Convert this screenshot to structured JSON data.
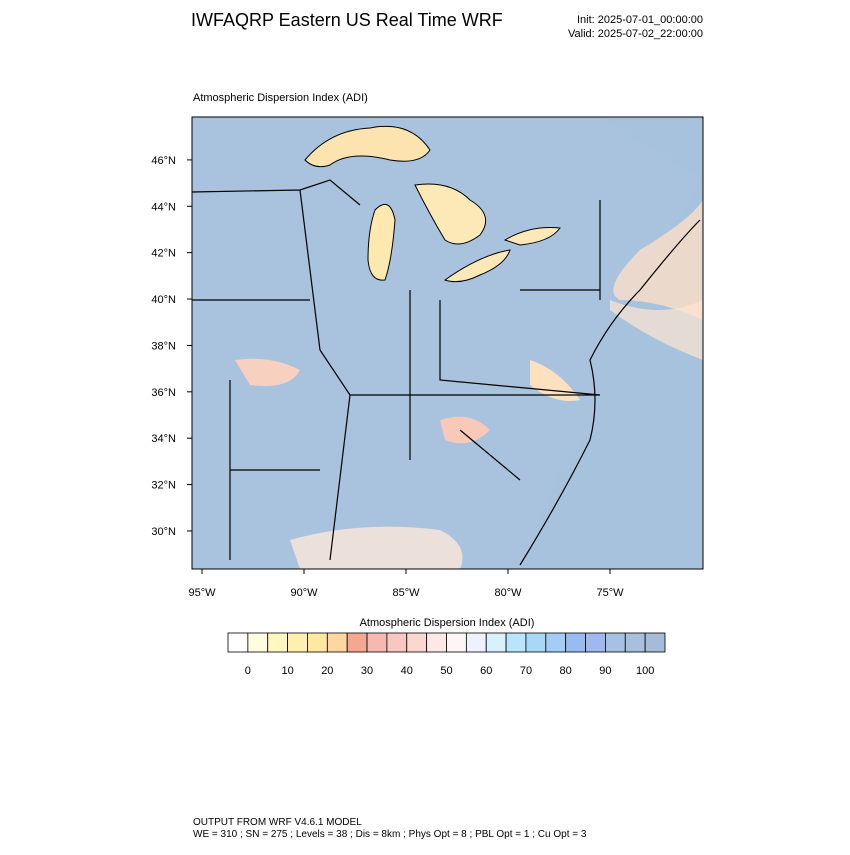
{
  "header": {
    "title": "IWFAQRP Eastern US Real Time WRF",
    "init": "Init: 2025-07-01_00:00:00",
    "valid": "Valid: 2025-07-02_22:00:00"
  },
  "map": {
    "title": "Atmospheric Dispersion Index   (ADI)",
    "xlim": [
      -95.49,
      -70.44
    ],
    "ylim": [
      28.36,
      47.85
    ],
    "xticks": [
      {
        "value": -95,
        "label": "95°W"
      },
      {
        "value": -90,
        "label": "90°W"
      },
      {
        "value": -85,
        "label": "85°W"
      },
      {
        "value": -80,
        "label": "80°W"
      },
      {
        "value": -75,
        "label": "75°W"
      }
    ],
    "yticks": [
      {
        "value": 30,
        "label": "30°N"
      },
      {
        "value": 32,
        "label": "32°N"
      },
      {
        "value": 34,
        "label": "34°N"
      },
      {
        "value": 36,
        "label": "36°N"
      },
      {
        "value": 38,
        "label": "38°N"
      },
      {
        "value": 40,
        "label": "40°N"
      },
      {
        "value": 42,
        "label": "42°N"
      },
      {
        "value": 44,
        "label": "44°N"
      },
      {
        "value": 46,
        "label": "46°N"
      }
    ]
  },
  "colorbar": {
    "title": "Atmospheric Dispersion Index  (ADI)",
    "lim": [
      -5,
      105
    ],
    "ticks": [
      0,
      10,
      20,
      30,
      40,
      50,
      60,
      70,
      80,
      90,
      100
    ],
    "levels": [
      0,
      5,
      10,
      15,
      20,
      25,
      30,
      35,
      40,
      45,
      50,
      55,
      60,
      65,
      70,
      75,
      80,
      85,
      90,
      95,
      100
    ],
    "colors": [
      "#ffffff",
      "#fffde0",
      "#fff6c0",
      "#fff0b0",
      "#ffe8a0",
      "#fcd8a0",
      "#f4a890",
      "#f6b8b0",
      "#f8c8c0",
      "#fad8d0",
      "#fce8e6",
      "#fdf6f6",
      "#eef2ff",
      "#d8f0ff",
      "#b8e4fc",
      "#a8d8f8",
      "#a4ccf4",
      "#98bcf0",
      "#a0b8ec",
      "#a8c0e4",
      "#a8c0dc",
      "#a4bcd8"
    ]
  },
  "footer": {
    "line1": "OUTPUT FROM WRF V4.6.1 MODEL",
    "line2": "WE = 310 ; SN = 275 ; Levels = 38 ; Dis = 8km ; Phys Opt = 8 ; PBL Opt = 1 ; Cu Opt = 3"
  }
}
